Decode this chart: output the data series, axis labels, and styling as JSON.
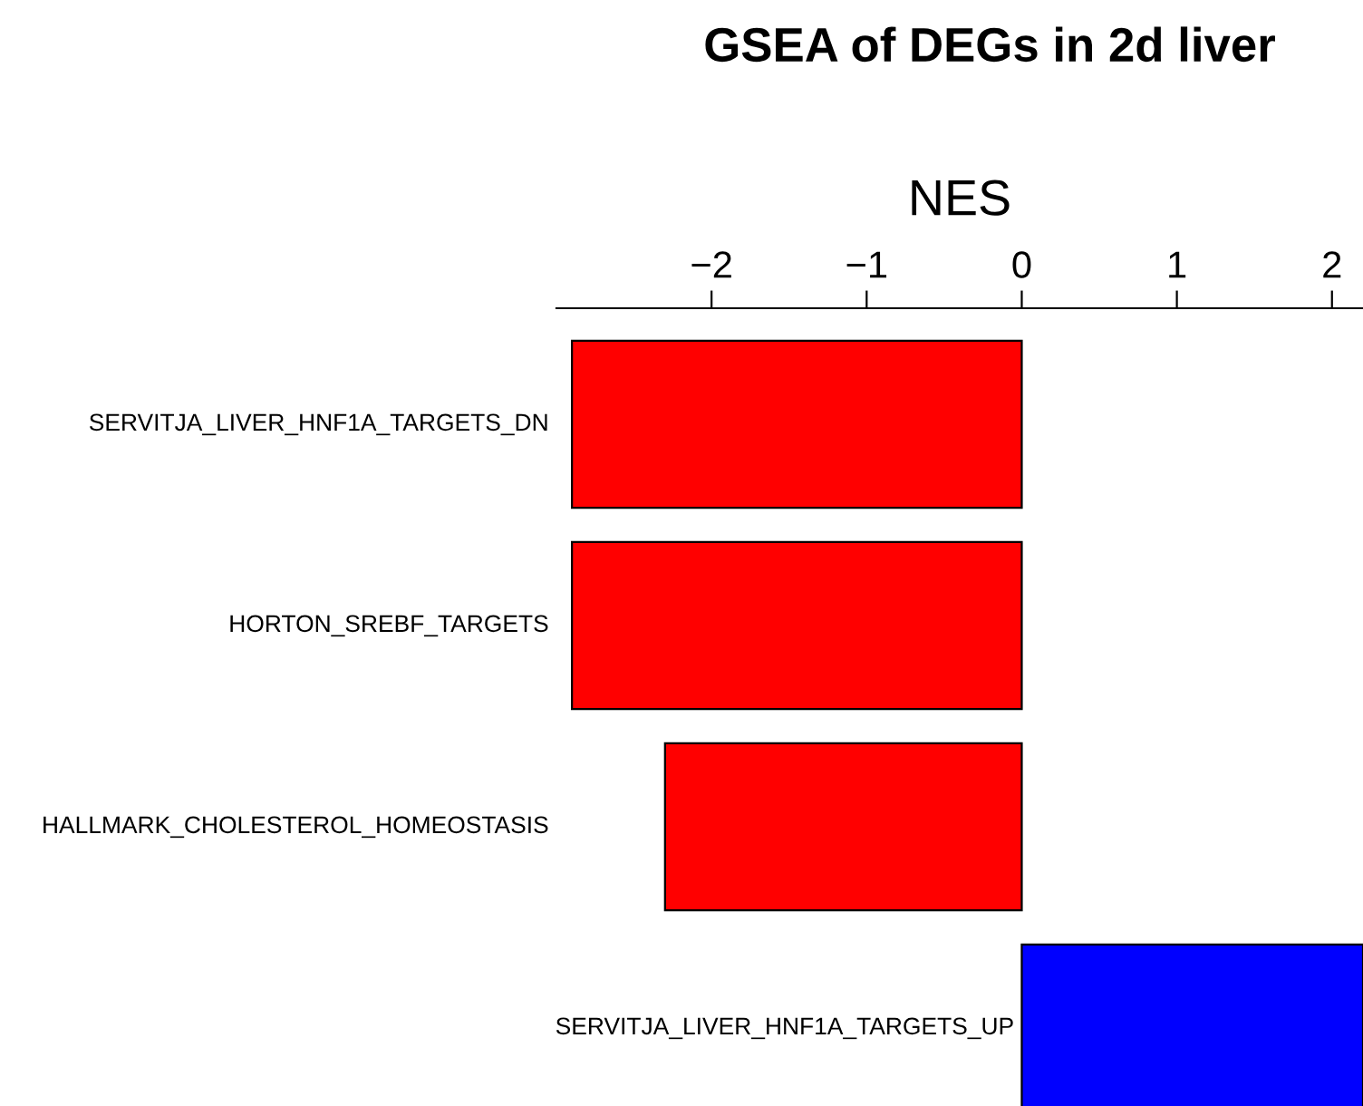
{
  "chart_data": {
    "type": "bar",
    "orientation": "horizontal",
    "title": "GSEA of DEGs in 2d liver",
    "xlabel": "NES",
    "categories": [
      "SERVITJA_LIVER_HNF1A_TARGETS_DN",
      "HORTON_SREBF_TARGETS",
      "HALLMARK_CHOLESTEROL_HOMEOSTASIS",
      "SERVITJA_LIVER_HNF1A_TARGETS_UP"
    ],
    "values": [
      -2.9,
      -2.9,
      -2.3,
      2.2
    ],
    "colors": [
      "#ff0000",
      "#ff0000",
      "#ff0000",
      "#0000ff"
    ],
    "xlim": [
      -3,
      2.2
    ],
    "xticks": [
      {
        "value": -2,
        "label": "−2"
      },
      {
        "value": -1,
        "label": "−1"
      },
      0,
      1,
      2
    ],
    "grid": false
  }
}
